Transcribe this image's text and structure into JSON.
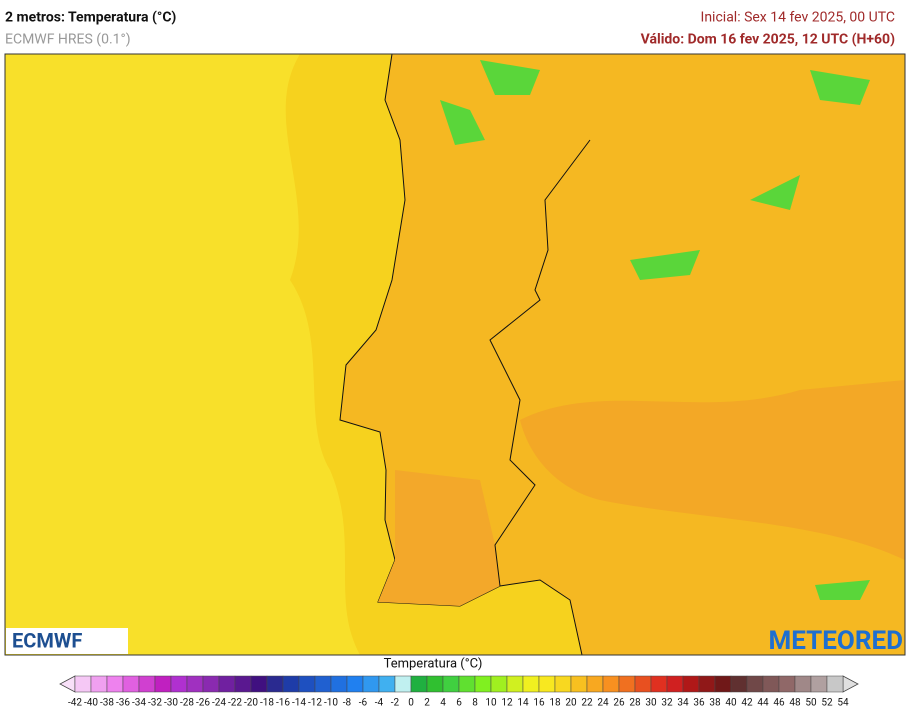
{
  "header": {
    "title": "2 metros: Temperatura (°C)",
    "subtitle": "ECMWF HRES (0.1°)",
    "initial": "Inicial: Sex 14 fev 2025, 00 UTC",
    "valid": "Válido: Dom 16 fev 2025, 12 UTC (H+60)"
  },
  "map": {
    "logo_left": "ECMWF",
    "logo_right": "METEORED"
  },
  "colorbar": {
    "title": "Temperatura (°C)",
    "ticks": [
      -42,
      -40,
      -38,
      -36,
      -34,
      -32,
      -30,
      -28,
      -26,
      -24,
      -22,
      -20,
      -18,
      -16,
      -14,
      -12,
      -10,
      -8,
      -6,
      -4,
      -2,
      0,
      2,
      4,
      6,
      8,
      10,
      12,
      14,
      16,
      18,
      20,
      22,
      24,
      26,
      28,
      30,
      32,
      34,
      36,
      38,
      40,
      42,
      44,
      46,
      48,
      50,
      52,
      54
    ],
    "colors": [
      "#f5c8f5",
      "#f0a0f0",
      "#ee82ee",
      "#e060e0",
      "#d040d0",
      "#c020c0",
      "#b030d0",
      "#a030c0",
      "#8a2ab0",
      "#7020a0",
      "#5a1890",
      "#401080",
      "#2a2a90",
      "#1e3ca8",
      "#1e50c0",
      "#2060d0",
      "#2070e0",
      "#2080f0",
      "#3098f0",
      "#40b0f0",
      "#c0f0f0",
      "#20b040",
      "#30c030",
      "#40d040",
      "#60e030",
      "#80f020",
      "#a0f020",
      "#d0f020",
      "#f0f020",
      "#f8e820",
      "#f8d820",
      "#f8c020",
      "#f8a820",
      "#f89020",
      "#f07020",
      "#e85020",
      "#e03020",
      "#d02020",
      "#b01818",
      "#901818",
      "#701818",
      "#603030",
      "#704848",
      "#805858",
      "#906868",
      "#a08888",
      "#b0a0a0",
      "#c8c8c8"
    ]
  }
}
